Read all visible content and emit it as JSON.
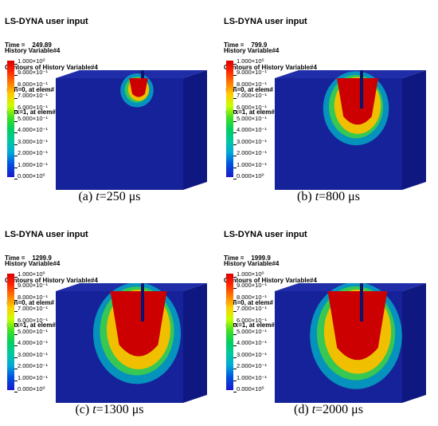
{
  "colors": {
    "cube_front": "#16229a",
    "cube_side": "#0e1880",
    "cube_top": "#1f2ea8",
    "damage_red": "#cc0000",
    "damage_edge_green": "#3fd13f"
  },
  "legend": {
    "title": "History Variable#4",
    "ticks": [
      "1.000×10⁰",
      "9.000×10⁻¹",
      "8.000×10⁻¹",
      "7.000×10⁻¹",
      "6.000×10⁻¹",
      "5.000×10⁻¹",
      "4.000×10⁻¹",
      "3.000×10⁻¹",
      "2.000×10⁻¹",
      "1.000×10⁻¹",
      "0.000×10⁰"
    ]
  },
  "panels": [
    {
      "header_title": "LS-DYNA user input",
      "time_label": "Time =",
      "time_value": "249.89",
      "contours": "Contours of History Variable#4",
      "min_line": " min=0, at elem# 3493",
      "max_line": " max=1, at elem# 106522",
      "caption_prefix": "(a) ",
      "caption_var": "t",
      "caption_rest": "=250 μs",
      "damage_level": 0.18
    },
    {
      "header_title": "LS-DYNA user input",
      "time_label": "Time =",
      "time_value": "799.9",
      "contours": "Contours of History Variable#4",
      "min_line": " min=0, at elem# 3493",
      "max_line": " max=1, at elem# 27692",
      "caption_prefix": "(b) ",
      "caption_var": "t",
      "caption_rest": "=800 μs",
      "damage_level": 0.55
    },
    {
      "header_title": "LS-DYNA user input",
      "time_label": "Time =",
      "time_value": "1299.9",
      "contours": "Contours of History Variable#4",
      "min_line": " min=0, at elem# 3493",
      "max_line": " max=1, at elem# 23167",
      "caption_prefix": "(c) ",
      "caption_var": "t",
      "caption_rest": "=1300 μs",
      "damage_level": 0.8
    },
    {
      "header_title": "LS-DYNA user input",
      "time_label": "Time =",
      "time_value": "1999.9",
      "contours": "Contours of History Variable#4",
      "min_line": " min=0, at elem# 3493",
      "max_line": " max=1, at elem# 21267",
      "caption_prefix": "(d) ",
      "caption_var": "t",
      "caption_rest": "=2000 μs",
      "damage_level": 0.85
    }
  ]
}
